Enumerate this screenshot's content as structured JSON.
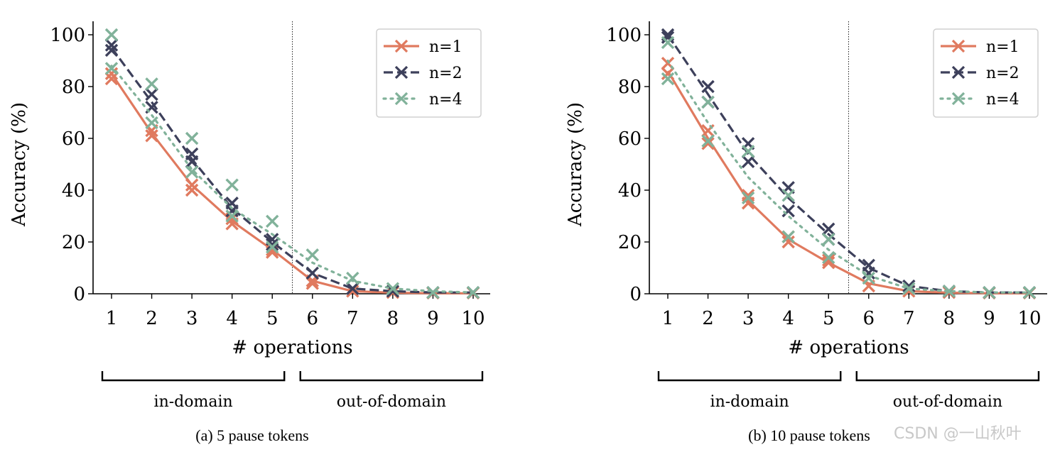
{
  "colors": {
    "n1": "#E07A5F",
    "n2": "#3D405B",
    "n4": "#81B29A"
  },
  "watermark": "CSDN @一山秋叶",
  "chart_data": [
    {
      "type": "line",
      "panel": "a",
      "caption": "(a) 5 pause tokens",
      "xlabel": "# operations",
      "ylabel": "Accuracy (%)",
      "x": [
        1,
        2,
        3,
        4,
        5,
        6,
        7,
        8,
        9,
        10
      ],
      "x_tick_labels": [
        "1",
        "2",
        "3",
        "4",
        "5",
        "6",
        "7",
        "8",
        "9",
        "10"
      ],
      "y_tick_labels": [
        "0",
        "20",
        "40",
        "60",
        "80",
        "100"
      ],
      "ylim": [
        0,
        105
      ],
      "grid": false,
      "legend_position": "top-right",
      "divider_between": [
        5,
        6
      ],
      "domain_labels": {
        "in": "in-domain",
        "out": "out-of-domain"
      },
      "series": [
        {
          "name": "n=1",
          "style": "solid",
          "line": [
            85,
            62,
            42,
            28,
            17,
            5,
            1,
            0.4,
            0.2,
            0.2
          ],
          "markers": [
            [
              1,
              83
            ],
            [
              1,
              85
            ],
            [
              2,
              61
            ],
            [
              2,
              63
            ],
            [
              3,
              40
            ],
            [
              3,
              42
            ],
            [
              4,
              27
            ],
            [
              4,
              29
            ],
            [
              5,
              16
            ],
            [
              5,
              17
            ],
            [
              6,
              4
            ],
            [
              6,
              5
            ],
            [
              7,
              1
            ],
            [
              8,
              0.5
            ],
            [
              9,
              0.3
            ],
            [
              10,
              0.3
            ]
          ]
        },
        {
          "name": "n=2",
          "style": "dashed",
          "line": [
            95,
            74,
            52,
            33,
            20,
            8,
            2,
            1,
            0.5,
            0.5
          ],
          "markers": [
            [
              1,
              94
            ],
            [
              1,
              96
            ],
            [
              2,
              72
            ],
            [
              2,
              77
            ],
            [
              3,
              51
            ],
            [
              3,
              54
            ],
            [
              4,
              32
            ],
            [
              4,
              35
            ],
            [
              5,
              19
            ],
            [
              5,
              21
            ],
            [
              6,
              8
            ],
            [
              7,
              2
            ],
            [
              8,
              1
            ],
            [
              9,
              0.5
            ],
            [
              10,
              0.5
            ]
          ]
        },
        {
          "name": "n=4",
          "style": "dotted",
          "line": [
            88,
            69,
            48,
            33,
            23,
            12,
            5,
            2,
            1,
            0.5
          ],
          "markers": [
            [
              1,
              87
            ],
            [
              1,
              100
            ],
            [
              2,
              66
            ],
            [
              2,
              81
            ],
            [
              3,
              47
            ],
            [
              3,
              60
            ],
            [
              4,
              30
            ],
            [
              4,
              42
            ],
            [
              5,
              18
            ],
            [
              5,
              28
            ],
            [
              6,
              15
            ],
            [
              7,
              6
            ],
            [
              8,
              2
            ],
            [
              9,
              0.5
            ],
            [
              10,
              0.5
            ]
          ]
        }
      ]
    },
    {
      "type": "line",
      "panel": "b",
      "caption": "(b) 10 pause tokens",
      "xlabel": "# operations",
      "ylabel": "Accuracy (%)",
      "x": [
        1,
        2,
        3,
        4,
        5,
        6,
        7,
        8,
        9,
        10
      ],
      "x_tick_labels": [
        "1",
        "2",
        "3",
        "4",
        "5",
        "6",
        "7",
        "8",
        "9",
        "10"
      ],
      "y_tick_labels": [
        "0",
        "20",
        "40",
        "60",
        "80",
        "100"
      ],
      "ylim": [
        0,
        105
      ],
      "grid": false,
      "legend_position": "top-right",
      "divider_between": [
        5,
        6
      ],
      "domain_labels": {
        "in": "in-domain",
        "out": "out-of-domain"
      },
      "series": [
        {
          "name": "n=1",
          "style": "solid",
          "line": [
            86,
            60,
            36,
            21,
            12,
            4,
            1,
            0.4,
            0.2,
            0.2
          ],
          "markers": [
            [
              1,
              85
            ],
            [
              1,
              89
            ],
            [
              2,
              58
            ],
            [
              2,
              63
            ],
            [
              3,
              35
            ],
            [
              3,
              38
            ],
            [
              4,
              20
            ],
            [
              4,
              22
            ],
            [
              5,
              12
            ],
            [
              5,
              13
            ],
            [
              6,
              3
            ],
            [
              7,
              1
            ],
            [
              8,
              0.5
            ],
            [
              9,
              0.3
            ],
            [
              10,
              0.3
            ]
          ]
        },
        {
          "name": "n=2",
          "style": "dashed",
          "line": [
            100,
            77,
            54,
            37,
            23,
            10,
            3,
            1,
            0.5,
            0.5
          ],
          "markers": [
            [
              1,
              99
            ],
            [
              1,
              100
            ],
            [
              2,
              74
            ],
            [
              2,
              80
            ],
            [
              3,
              51
            ],
            [
              3,
              58
            ],
            [
              4,
              32
            ],
            [
              4,
              41
            ],
            [
              5,
              21
            ],
            [
              5,
              25
            ],
            [
              6,
              8
            ],
            [
              6,
              11
            ],
            [
              7,
              3
            ],
            [
              8,
              1
            ],
            [
              9,
              0.5
            ],
            [
              10,
              0.5
            ]
          ]
        },
        {
          "name": "n=4",
          "style": "dotted",
          "line": [
            90,
            66,
            45,
            30,
            17,
            7,
            2,
            1,
            0.5,
            0.5
          ],
          "markers": [
            [
              1,
              83
            ],
            [
              1,
              97
            ],
            [
              2,
              59
            ],
            [
              2,
              74
            ],
            [
              3,
              37
            ],
            [
              3,
              55
            ],
            [
              4,
              22
            ],
            [
              4,
              38
            ],
            [
              5,
              14
            ],
            [
              5,
              21
            ],
            [
              6,
              6
            ],
            [
              7,
              2
            ],
            [
              8,
              1
            ],
            [
              9,
              0.5
            ],
            [
              10,
              0.5
            ]
          ]
        }
      ]
    }
  ]
}
